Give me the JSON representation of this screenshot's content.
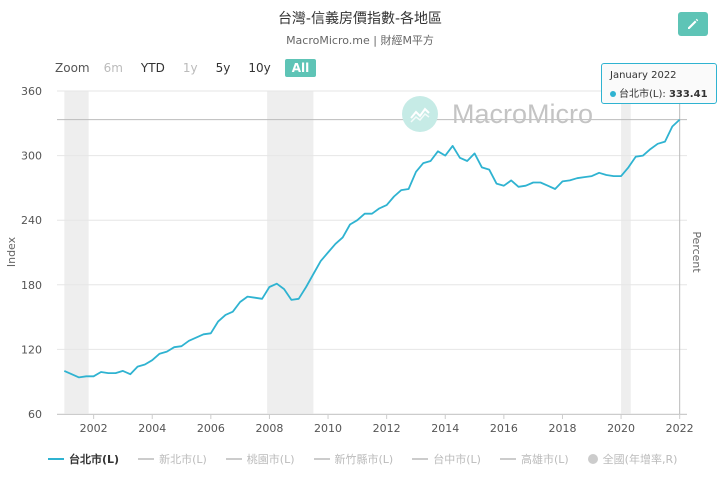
{
  "header": {
    "title": "台灣-信義房價指數-各地區",
    "subtitle": "MacroMicro.me | 財經M平方"
  },
  "range_selector": {
    "zoom_label": "Zoom",
    "buttons": [
      {
        "label": "6m",
        "state": "disabled"
      },
      {
        "label": "YTD",
        "state": "normal"
      },
      {
        "label": "1y",
        "state": "disabled"
      },
      {
        "label": "5y",
        "state": "normal"
      },
      {
        "label": "10y",
        "state": "normal"
      },
      {
        "label": "All",
        "state": "active"
      }
    ]
  },
  "watermark": {
    "text": "MacroMicro"
  },
  "tooltip": {
    "date": "January 2022",
    "series": "台北市(L):",
    "value": "333.41"
  },
  "legend": {
    "items": [
      {
        "label": "台北市(L)",
        "active": true,
        "marker": "line"
      },
      {
        "label": "新北市(L)",
        "active": false,
        "marker": "line"
      },
      {
        "label": "桃園市(L)",
        "active": false,
        "marker": "line"
      },
      {
        "label": "新竹縣市(L)",
        "active": false,
        "marker": "line"
      },
      {
        "label": "台中市(L)",
        "active": false,
        "marker": "line"
      },
      {
        "label": "高雄市(L)",
        "active": false,
        "marker": "line"
      },
      {
        "label": "全國(年增率,R)",
        "active": false,
        "marker": "dot"
      }
    ]
  },
  "colors": {
    "series": "#2fb3d1",
    "recession": "#eeeeee",
    "accent": "#5ec4b6",
    "inactive": "#cccccc"
  },
  "chart_data": {
    "type": "line",
    "title": "台灣-信義房價指數-各地區",
    "ylabel": "Index",
    "y2label": "Percent",
    "ylim": [
      60,
      360
    ],
    "yticks": [
      60,
      120,
      180,
      240,
      300,
      360
    ],
    "xticks": [
      "2002",
      "2004",
      "2006",
      "2008",
      "2010",
      "2012",
      "2014",
      "2016",
      "2018",
      "2020",
      "2022"
    ],
    "xlim": [
      2000.75,
      2022.25
    ],
    "grid": true,
    "recession_bands": [
      [
        2001.0,
        2001.83
      ],
      [
        2007.92,
        2009.5
      ],
      [
        2020.0,
        2020.33
      ]
    ],
    "crosshair_x": 2022.0,
    "series": [
      {
        "name": "台北市(L)",
        "x": [
          2001.0,
          2001.25,
          2001.5,
          2001.75,
          2002.0,
          2002.25,
          2002.5,
          2002.75,
          2003.0,
          2003.25,
          2003.5,
          2003.75,
          2004.0,
          2004.25,
          2004.5,
          2004.75,
          2005.0,
          2005.25,
          2005.5,
          2005.75,
          2006.0,
          2006.25,
          2006.5,
          2006.75,
          2007.0,
          2007.25,
          2007.5,
          2007.75,
          2008.0,
          2008.25,
          2008.5,
          2008.75,
          2009.0,
          2009.25,
          2009.5,
          2009.75,
          2010.0,
          2010.25,
          2010.5,
          2010.75,
          2011.0,
          2011.25,
          2011.5,
          2011.75,
          2012.0,
          2012.25,
          2012.5,
          2012.75,
          2013.0,
          2013.25,
          2013.5,
          2013.75,
          2014.0,
          2014.25,
          2014.5,
          2014.75,
          2015.0,
          2015.25,
          2015.5,
          2015.75,
          2016.0,
          2016.25,
          2016.5,
          2016.75,
          2017.0,
          2017.25,
          2017.5,
          2017.75,
          2018.0,
          2018.25,
          2018.5,
          2018.75,
          2019.0,
          2019.25,
          2019.5,
          2019.75,
          2020.0,
          2020.25,
          2020.5,
          2020.75,
          2021.0,
          2021.25,
          2021.5,
          2021.75,
          2022.0
        ],
        "values": [
          100,
          97,
          94,
          95,
          95,
          99,
          98,
          98,
          100,
          97,
          104,
          106,
          110,
          116,
          118,
          122,
          123,
          128,
          131,
          134,
          135,
          146,
          152,
          155,
          164,
          169,
          168,
          167,
          178,
          181,
          176,
          166,
          167,
          178,
          190,
          202,
          210,
          218,
          224,
          236,
          240,
          246,
          246,
          251,
          254,
          262,
          268,
          269,
          285,
          293,
          295,
          304,
          300,
          309,
          298,
          295,
          302,
          289,
          287,
          274,
          272,
          277,
          271,
          272,
          275,
          275,
          272,
          269,
          276,
          277,
          279,
          280,
          281,
          284,
          282,
          281,
          281,
          289,
          299,
          300,
          306,
          311,
          313,
          327,
          333.41
        ]
      }
    ]
  }
}
